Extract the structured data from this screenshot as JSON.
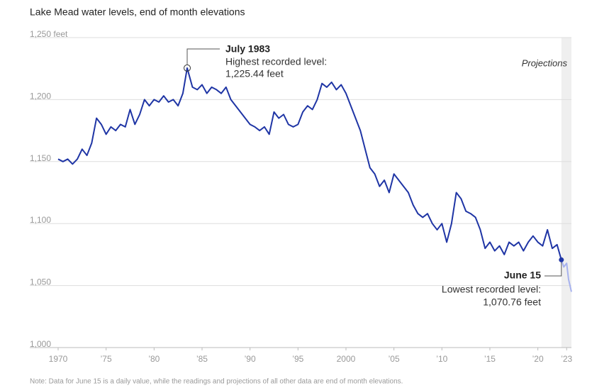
{
  "chart_data": {
    "type": "line",
    "title": "Lake Mead water levels, end of month elevations",
    "xlim": [
      1970,
      2023.5
    ],
    "ylim": [
      1000,
      1250
    ],
    "xticks": [
      1970,
      {
        "value": 1975,
        "label": "’75"
      },
      {
        "value": 1980,
        "label": "’80"
      },
      {
        "value": 1985,
        "label": "’85"
      },
      {
        "value": 1990,
        "label": "’90"
      },
      {
        "value": 1995,
        "label": "’95"
      },
      2000,
      {
        "value": 2005,
        "label": "’05"
      },
      {
        "value": 2010,
        "label": "’10"
      },
      {
        "value": 2015,
        "label": "’15"
      },
      {
        "value": 2020,
        "label": "’20"
      },
      {
        "value": 2023,
        "label": "’23"
      }
    ],
    "yticks": [
      {
        "value": 1000,
        "label": "1,000"
      },
      {
        "value": 1050,
        "label": "1,050"
      },
      {
        "value": 1100,
        "label": "1,100"
      },
      {
        "value": 1150,
        "label": "1,150"
      },
      {
        "value": 1200,
        "label": "1,200"
      },
      {
        "value": 1250,
        "label": "1,250 feet"
      }
    ],
    "grid": true,
    "series": [
      {
        "color": "#1f35a5",
        "x": [
          1970,
          1970.5,
          1971,
          1971.5,
          1972,
          1972.5,
          1973,
          1973.5,
          1974,
          1974.5,
          1975,
          1975.5,
          1976,
          1976.5,
          1977,
          1977.5,
          1978,
          1978.5,
          1979,
          1979.5,
          1980,
          1980.5,
          1981,
          1981.5,
          1982,
          1982.5,
          1983,
          1983.45,
          1984,
          1984.5,
          1985,
          1985.5,
          1986,
          1986.5,
          1987,
          1987.5,
          1988,
          1988.5,
          1989,
          1989.5,
          1990,
          1990.5,
          1991,
          1991.5,
          1992,
          1992.5,
          1993,
          1993.5,
          1994,
          1994.5,
          1995,
          1995.5,
          1996,
          1996.5,
          1997,
          1997.5,
          1998,
          1998.5,
          1999,
          1999.5,
          2000,
          2000.5,
          2001,
          2001.5,
          2002,
          2002.5,
          2003,
          2003.5,
          2004,
          2004.5,
          2005,
          2005.5,
          2006,
          2006.5,
          2007,
          2007.5,
          2008,
          2008.5,
          2009,
          2009.5,
          2010,
          2010.5,
          2011,
          2011.5,
          2012,
          2012.5,
          2013,
          2013.5,
          2014,
          2014.5,
          2015,
          2015.5,
          2016,
          2016.5,
          2017,
          2017.5,
          2018,
          2018.5,
          2019,
          2019.5,
          2020,
          2020.5,
          2021,
          2021.5,
          2022,
          2022.45
        ],
        "values": [
          1152,
          1150,
          1152,
          1148,
          1152,
          1160,
          1155,
          1165,
          1185,
          1180,
          1172,
          1178,
          1175,
          1180,
          1178,
          1192,
          1180,
          1188,
          1200,
          1195,
          1200,
          1198,
          1203,
          1198,
          1200,
          1195,
          1205,
          1225.44,
          1210,
          1208,
          1212,
          1205,
          1210,
          1208,
          1205,
          1210,
          1200,
          1195,
          1190,
          1185,
          1180,
          1178,
          1175,
          1178,
          1172,
          1190,
          1185,
          1188,
          1180,
          1178,
          1180,
          1190,
          1195,
          1192,
          1200,
          1213,
          1210,
          1214,
          1208,
          1212,
          1205,
          1195,
          1185,
          1175,
          1160,
          1145,
          1140,
          1130,
          1135,
          1125,
          1140,
          1135,
          1130,
          1125,
          1115,
          1108,
          1105,
          1108,
          1100,
          1095,
          1100,
          1085,
          1100,
          1125,
          1120,
          1110,
          1108,
          1105,
          1095,
          1080,
          1085,
          1078,
          1082,
          1075,
          1085,
          1082,
          1085,
          1078,
          1085,
          1090,
          1085,
          1082,
          1095,
          1080,
          1083,
          1070.76
        ]
      },
      {
        "color": "#a7b2ee",
        "x": [
          2022.45,
          2022.7,
          2023,
          2023.2,
          2023.5
        ],
        "values": [
          1070.76,
          1065,
          1068,
          1055,
          1045
        ]
      }
    ],
    "projection_label": "Projections",
    "annotations": [
      {
        "x": 1983.45,
        "y": 1225.44,
        "title": "July 1983",
        "text": "Highest recorded level:",
        "value_label": "1,225.44 feet"
      },
      {
        "x": 2022.45,
        "y": 1070.76,
        "title": "June 15",
        "text": "Lowest recorded level:",
        "value_label": "1,070.76 feet"
      }
    ],
    "note": "Note: Data for June 15 is a daily value, while the readings and projections of all other data are end of month elevations."
  }
}
